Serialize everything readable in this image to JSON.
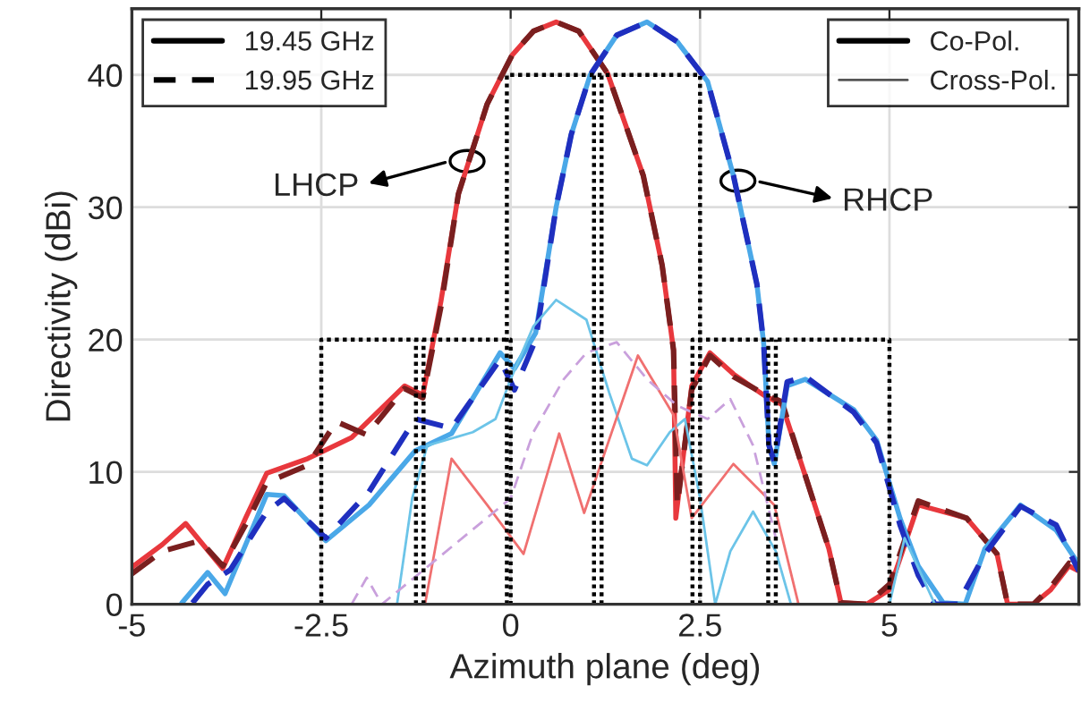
{
  "chart_data": {
    "type": "line",
    "xlabel": "Azimuth plane (deg)",
    "ylabel": "Directivity (dBi)",
    "xlim": [
      -5,
      7.5
    ],
    "ylim": [
      0,
      45
    ],
    "xticks": [
      -5,
      -2.5,
      0,
      2.5,
      5
    ],
    "yticks": [
      0,
      10,
      20,
      30,
      40
    ],
    "grid": true,
    "annotations": [
      "LHCP",
      "RHCP",
      "19.45 GHz",
      "19.95 GHz",
      "Co-Pol.",
      "Cross-Pol."
    ],
    "series": [
      {
        "color": "#e8383d",
        "line_style": "solid",
        "x": [
          -5,
          -4.6,
          -4.29,
          -3.8,
          -3.5,
          -3.22,
          -2.68,
          -2.1,
          -1.4,
          -1.16,
          -0.92,
          -0.69,
          -0.31,
          0.02,
          0.3,
          0.6,
          0.9,
          1.28,
          1.75,
          2.0,
          2.15,
          2.18,
          2.39,
          2.63,
          2.94,
          3.34,
          3.58,
          3.89,
          4.2,
          4.36,
          4.7,
          5.0,
          5.38,
          6.02,
          6.42,
          6.56,
          6.9,
          7.13,
          7.37,
          7.5
        ],
        "values": [
          2.8,
          4.5,
          6.1,
          2.7,
          6.5,
          9.9,
          11.0,
          12.6,
          16.5,
          15.8,
          22.9,
          31,
          37.8,
          41.5,
          43.3,
          44,
          43.3,
          40.1,
          32.4,
          25.6,
          19.2,
          6.5,
          16.5,
          19.0,
          17.4,
          15.8,
          15.1,
          9.7,
          4.2,
          0.1,
          0,
          1.1,
          7.5,
          6.5,
          3.8,
          0,
          0,
          1.1,
          2.9,
          2.5
        ]
      },
      {
        "color": "#7a1f1f",
        "line_style": "dashed",
        "x": [
          -5,
          -4.6,
          -4.1,
          -3.8,
          -3.5,
          -3.22,
          -2.68,
          -2.3,
          -1.9,
          -1.4,
          -1.16,
          -0.92,
          -0.69,
          -0.31,
          0.02,
          0.3,
          0.6,
          0.9,
          1.28,
          1.75,
          2.0,
          2.15,
          2.2,
          2.39,
          2.63,
          2.94,
          3.34,
          3.58,
          3.89,
          4.2,
          4.36,
          4.7,
          5.0,
          5.38,
          6.02,
          6.42,
          6.56,
          6.9,
          7.13,
          7.37,
          7.5
        ],
        "values": [
          2.3,
          4.0,
          4.8,
          2.9,
          6.0,
          9.2,
          10.5,
          13.8,
          12.8,
          16.3,
          15.6,
          22.5,
          31,
          37.8,
          41.5,
          43.3,
          44,
          43.3,
          40.1,
          32.4,
          25.6,
          19.2,
          7.5,
          16.2,
          18.8,
          17.2,
          15.9,
          15.3,
          9.7,
          4.2,
          0.1,
          0,
          1.5,
          7.8,
          6.5,
          3.8,
          0,
          0,
          1.3,
          3.1,
          2.7
        ]
      },
      {
        "color": "#4aa8e8",
        "line_style": "solid",
        "x": [
          -4.34,
          -4.0,
          -3.77,
          -3.22,
          -2.99,
          -2.44,
          -1.87,
          -1.26,
          -0.78,
          -0.14,
          0.05,
          0.33,
          0.6,
          0.8,
          1.05,
          1.4,
          1.8,
          2.2,
          2.6,
          2.94,
          3.25,
          3.34,
          3.41,
          3.48,
          3.65,
          3.89,
          4.53,
          4.83,
          5.14,
          5.38,
          5.71,
          6.0,
          6.26,
          6.73,
          7.2,
          7.5
        ],
        "values": [
          0.1,
          2.4,
          0.8,
          8.3,
          8.2,
          4.8,
          7.5,
          11.6,
          12.9,
          19.0,
          17.8,
          20.5,
          30,
          35.5,
          40,
          43,
          44,
          42.5,
          39.5,
          32.4,
          24.2,
          19.7,
          12,
          10.6,
          16.5,
          17,
          14.7,
          12.4,
          6.5,
          2.9,
          0.1,
          0,
          4.2,
          7.5,
          5.6,
          3.0
        ]
      },
      {
        "color": "#1f2fbf",
        "line_style": "dashed",
        "x": [
          -4.2,
          -4.0,
          -3.7,
          -3.22,
          -2.99,
          -2.44,
          -1.87,
          -1.26,
          -0.78,
          -0.14,
          0.05,
          0.33,
          0.6,
          0.8,
          1.05,
          1.4,
          1.8,
          2.2,
          2.6,
          2.94,
          3.25,
          3.34,
          3.41,
          3.48,
          3.65,
          3.89,
          4.53,
          4.83,
          5.14,
          5.38,
          5.6,
          5.9,
          6.26,
          6.73,
          7.2,
          7.5
        ],
        "values": [
          0.1,
          1.5,
          2.6,
          7.0,
          8.0,
          5.0,
          8.5,
          14.0,
          13.3,
          18.5,
          16.2,
          20.0,
          30,
          35.5,
          40,
          43,
          44,
          42.5,
          39.5,
          32.4,
          24.2,
          19.7,
          12,
          10.8,
          16.8,
          17.2,
          14.5,
          12.2,
          6.0,
          2.2,
          0,
          0,
          3.8,
          7.4,
          6.0,
          2.5
        ]
      },
      {
        "color": "#6cc4e8",
        "line_style": "solid",
        "x": [
          -1.5,
          -1.3,
          -1.1,
          -0.5,
          -0.2,
          0.0,
          0.3,
          0.6,
          1.0,
          1.3,
          1.6,
          1.8,
          2.1,
          2.3,
          2.5,
          2.7,
          2.9,
          3.2,
          3.5,
          3.7,
          5.0,
          5.2,
          5.6
        ],
        "values": [
          0,
          8,
          12,
          13,
          14,
          17,
          21,
          23,
          21.5,
          16,
          11,
          10.5,
          13,
          14,
          8,
          0,
          4,
          7,
          4,
          0,
          0,
          5,
          0
        ]
      },
      {
        "color": "#f07070",
        "line_style": "solid",
        "x": [
          -1.13,
          -0.78,
          -0.31,
          0.17,
          0.64,
          0.97,
          1.68,
          2.15,
          2.39,
          2.94,
          3.48,
          3.8
        ],
        "values": [
          0,
          11,
          7.5,
          3.8,
          12.9,
          6.9,
          18.8,
          14.3,
          6.5,
          10.6,
          7.5,
          0
        ]
      },
      {
        "color": "#c9a0dc",
        "line_style": "dashed",
        "x": [
          -2.1,
          -1.9,
          -1.7,
          0.0,
          0.3,
          0.7,
          1.0,
          1.4,
          1.8,
          2.2,
          2.6,
          2.9,
          3.2,
          3.5
        ],
        "values": [
          0,
          2,
          0,
          8,
          13,
          17,
          19,
          19.8,
          17,
          15,
          14,
          15.5,
          12,
          5
        ]
      },
      {
        "color": "#000000",
        "line_style": "dotted",
        "x": [
          -2.5,
          -2.5,
          0,
          0
        ],
        "values": [
          0,
          20,
          20,
          0
        ]
      },
      {
        "color": "#000000",
        "line_style": "dotted",
        "x": [
          -1.25,
          -1.25
        ],
        "values": [
          0,
          20
        ]
      },
      {
        "color": "#000000",
        "line_style": "dotted",
        "x": [
          -1.15,
          -1.15
        ],
        "values": [
          0,
          20
        ]
      },
      {
        "color": "#000000",
        "line_style": "dotted",
        "x": [
          -0.05,
          -0.05,
          2.5,
          2.5
        ],
        "values": [
          0,
          40,
          40,
          0
        ]
      },
      {
        "color": "#000000",
        "line_style": "dotted",
        "x": [
          1.1,
          1.1
        ],
        "values": [
          0,
          40
        ]
      },
      {
        "color": "#000000",
        "line_style": "dotted",
        "x": [
          1.2,
          1.2
        ],
        "values": [
          0,
          40
        ]
      },
      {
        "color": "#000000",
        "line_style": "dotted",
        "x": [
          2.4,
          2.4,
          5,
          5
        ],
        "values": [
          0,
          20,
          20,
          0
        ]
      },
      {
        "color": "#000000",
        "line_style": "dotted",
        "x": [
          3.4,
          3.4
        ],
        "values": [
          0,
          20
        ]
      },
      {
        "color": "#000000",
        "line_style": "dotted",
        "x": [
          3.5,
          3.5
        ],
        "values": [
          0,
          20
        ]
      }
    ]
  }
}
